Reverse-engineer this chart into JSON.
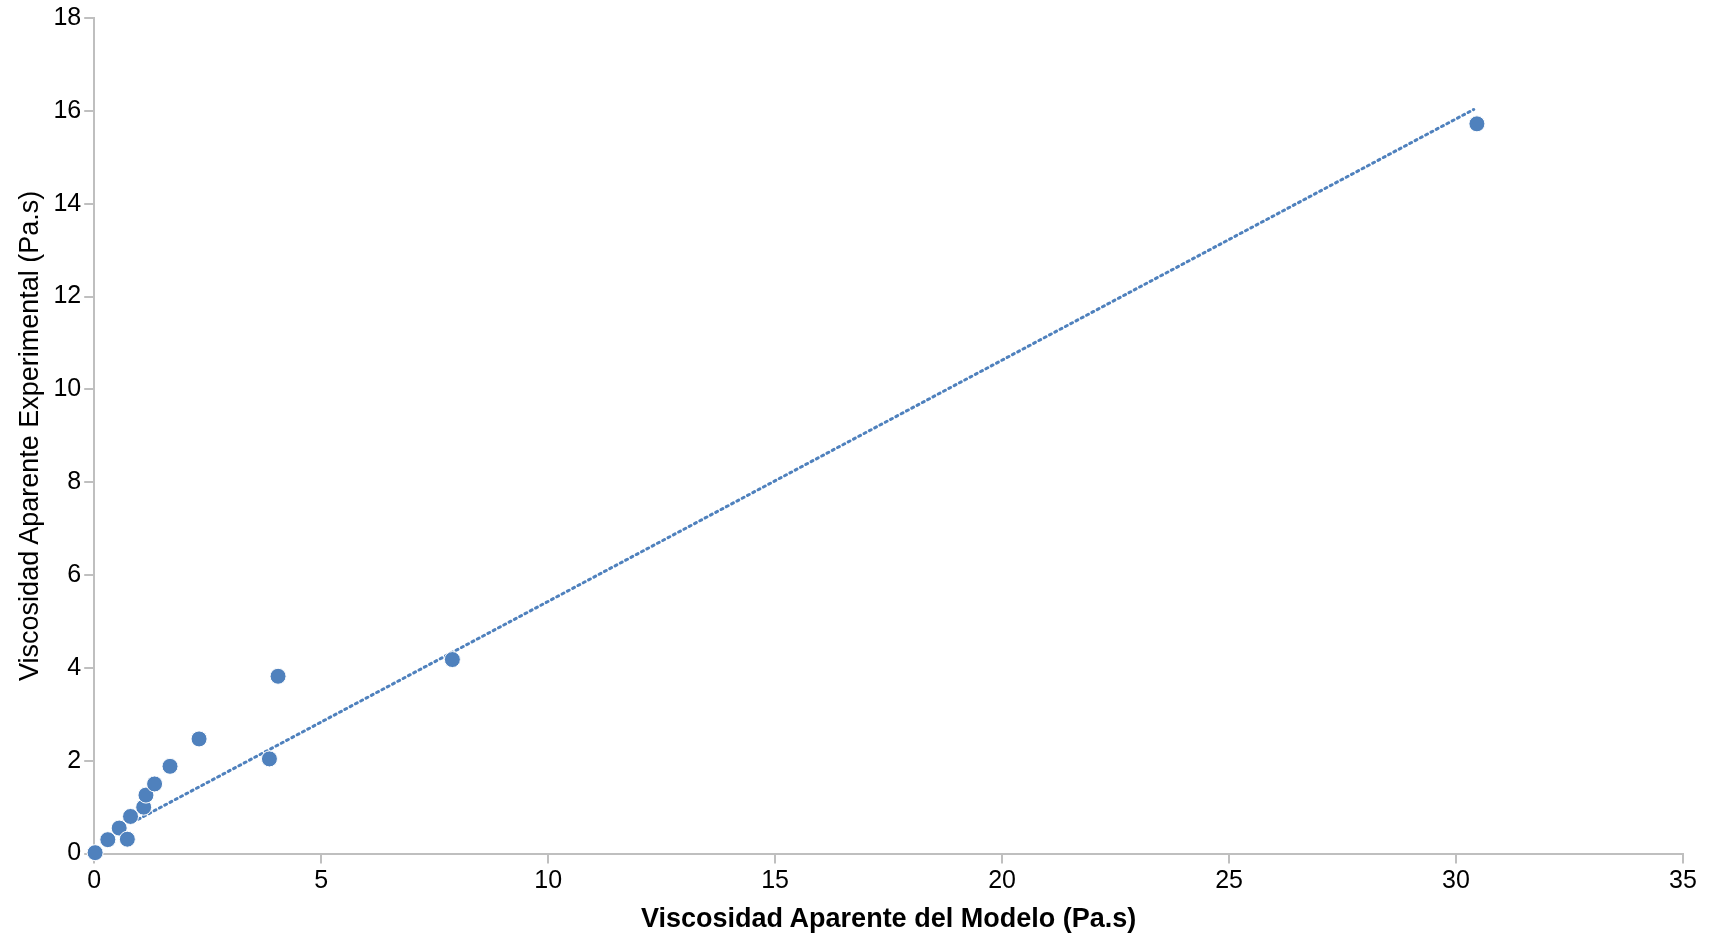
{
  "chart_data": {
    "type": "scatter",
    "xlabel": "Viscosidad Aparente del Modelo (Pa.s)",
    "ylabel": "Viscosidad Aparente Experimental (Pa.s)",
    "xlim": [
      0,
      35
    ],
    "ylim": [
      0,
      18
    ],
    "xticks": [
      0,
      5,
      10,
      15,
      20,
      25,
      30,
      35
    ],
    "yticks": [
      0,
      2,
      4,
      6,
      8,
      10,
      12,
      14,
      16,
      18
    ],
    "grid": false,
    "legend": false,
    "marker": "circle",
    "series": [
      {
        "color": "#4f81bd",
        "x": [
          0.02,
          0.3,
          0.55,
          0.8,
          0.73,
          1.09,
          1.14,
          1.33,
          1.67,
          2.31,
          3.86,
          4.05,
          7.89,
          30.46
        ],
        "values": [
          0.02,
          0.3,
          0.55,
          0.8,
          0.31,
          1.0,
          1.26,
          1.5,
          1.88,
          2.47,
          2.04,
          3.82,
          4.18,
          15.72
        ]
      },
      {
        "type": "line",
        "color": "#4f81bd",
        "line_style": "dotted",
        "marker": "none",
        "x": [
          0.97,
          30.39
        ],
        "values": [
          0.74,
          16.03
        ]
      }
    ]
  }
}
